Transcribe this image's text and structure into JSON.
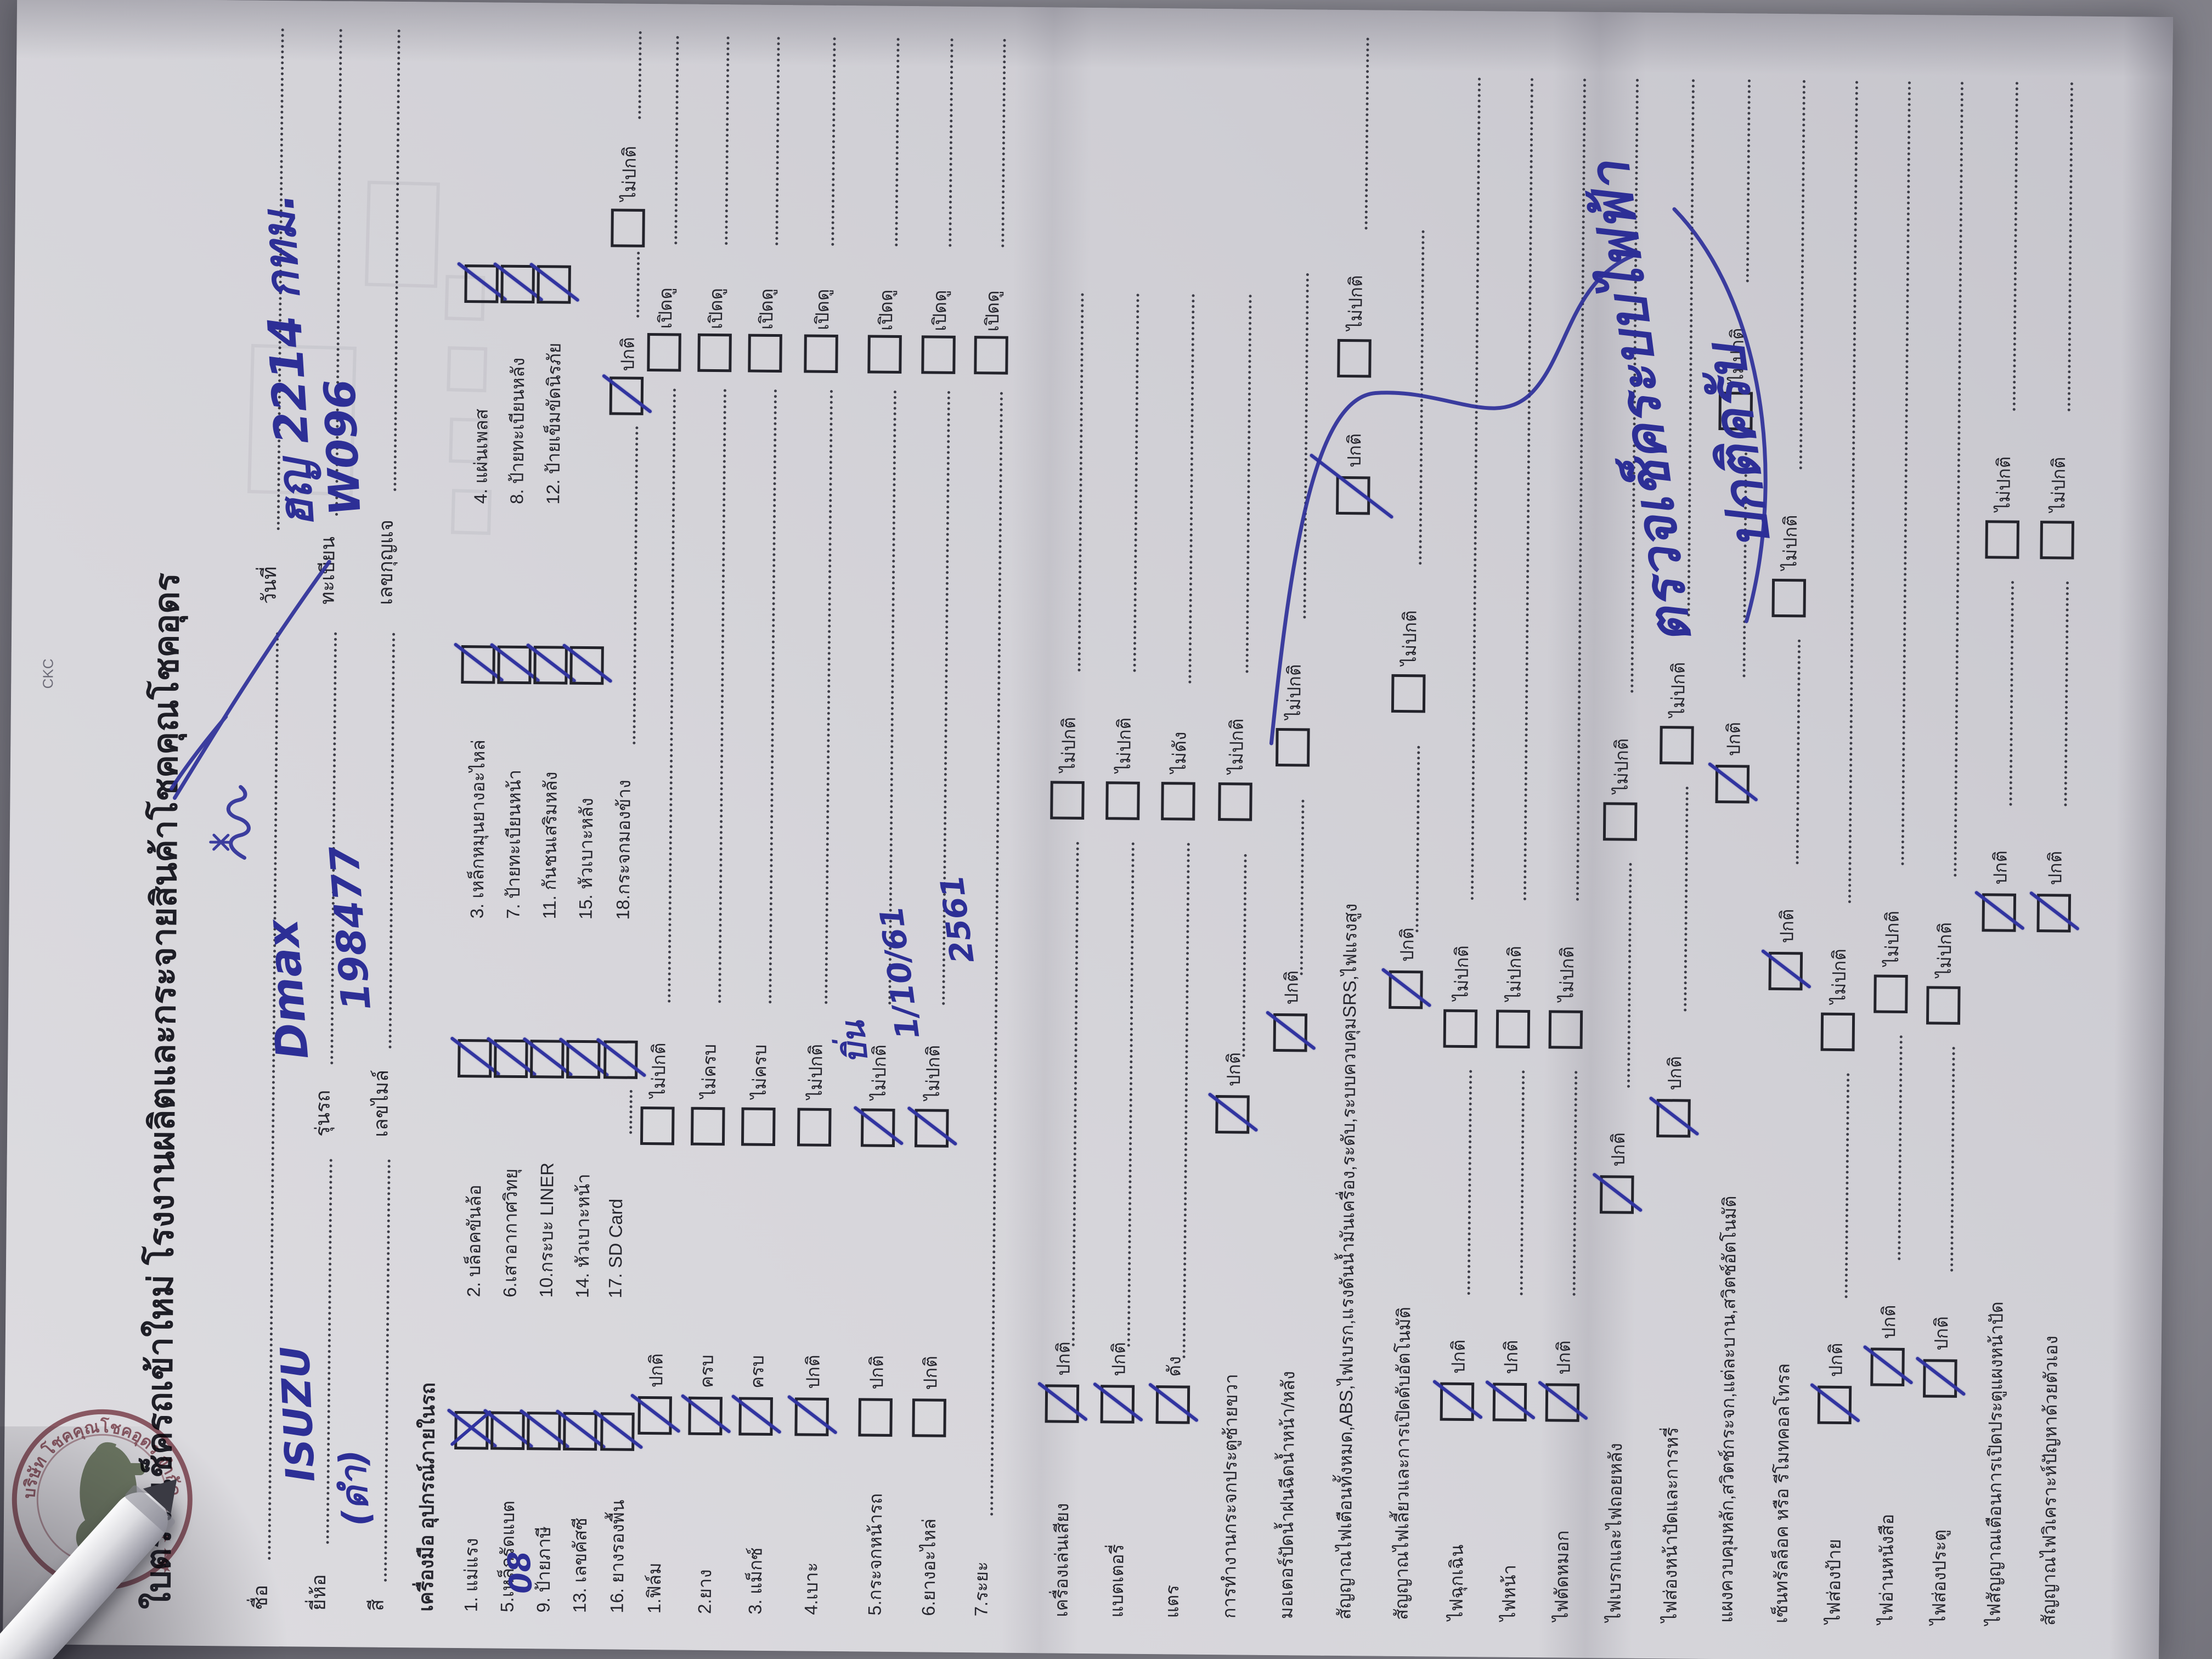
{
  "title": "ใบตรวจเช็ครถเข้าใหม่ โรงงานผลิตและกระจายสินค้าโชคคุณโชคอุดร",
  "header": {
    "fields": [
      {
        "label": "ชื่อ",
        "value": ""
      },
      {
        "label": "วันที่",
        "value": ""
      },
      {
        "label": "ยี่ห้อ",
        "value": "ISUZU"
      },
      {
        "label": "รุ่นรถ",
        "value": "Dmax"
      },
      {
        "label": "ทะเบียน",
        "value": "ฮญ 2214 กทม."
      },
      {
        "label": "สี",
        "value": "(ดำ)"
      },
      {
        "label": "เลขไมล์",
        "value": "198477"
      },
      {
        "label": "เลขกุญแจ",
        "value": "W096"
      }
    ]
  },
  "stamp": {
    "ring_text": "บริษัท โชคคุณโชคอุดร จำกัด",
    "code": "CKC",
    "stars": "★ ★ ★"
  },
  "tools": {
    "title": "เครื่องมือ อุปกรณ์ภายในรถ",
    "items": [
      "1. แม่แรง",
      "2. บล็อคขันล้อ",
      "3. เหล็กหมุนยางอะไหล่",
      "4. แผ่นเพลส",
      "5.เหล็กรัดแบต",
      "6.เสาอากาศวิทยุ",
      "7. ป้ายทะเบียนหน้า",
      "8. ป้ายทะเบียนหลัง",
      "9. ป้ายภาษี",
      "10.กระบะ LINER",
      "11. กันชนเสริมหลัง",
      "12. ป้ายเข็มขัดนิรภัย",
      "13. เลขคัสซี",
      "14. หัวเบาะหน้า",
      "15. หัวเบาะหลัง",
      "16. ยางรองพื้น",
      "17. SD Card",
      "18.กระจกมองข้าง"
    ],
    "note_item9": "08",
    "tail_ok": "ปกติ",
    "tail_bad": "ไม่ปกติ"
  },
  "inspect": {
    "open_label": "เปิดดู",
    "rows": [
      {
        "label": "1.ฟิล์ม",
        "o1": "ปกติ",
        "o2": "ไม่ปกติ",
        "mark": 1
      },
      {
        "label": "2.ยาง",
        "o1": "ครบ",
        "o2": "ไม่ครบ",
        "mark": 1
      },
      {
        "label": "3. แม็กซ์",
        "o1": "ครบ",
        "o2": "ไม่ครบ",
        "mark": 1
      },
      {
        "label": "4.เบาะ",
        "o1": "ปกติ",
        "o2": "ไม่ปกติ",
        "mark": 1
      },
      {
        "label": "5.กระจกหน้ารถ",
        "o1": "ปกติ",
        "o2": "ไม่ปกติ",
        "mark": 2
      },
      {
        "label": "6.ยางอะไหล่",
        "o1": "ปกติ",
        "o2": "ไม่ปกติ",
        "mark": 2
      },
      {
        "label": "7.ระยะ",
        "simple": true
      }
    ],
    "notes": [
      "บิ่น",
      "1/10/61",
      "2561"
    ]
  },
  "functions": {
    "rows": [
      {
        "label": "เครื่องเล่นเสียง",
        "o1": "ปกติ",
        "o2": "ไม่ปกติ"
      },
      {
        "label": "แบตเตอรี่",
        "o1": "ปกติ",
        "o2": "ไม่ปกติ"
      },
      {
        "label": "แตร",
        "o1": "ดัง",
        "o2": "ไม่ดัง"
      },
      {
        "label": "การทำงานกระจกประตูซ้ายขวา",
        "o1": "ปกติ",
        "o2": "ไม่ปกติ"
      },
      {
        "label": "มอเตอร์ปัดน้ำฝนฉีดน้ำหน้า/หลัง",
        "o1": "ปกติ",
        "o2": "ไม่ปกติ"
      },
      {
        "label": "สัญญาณไฟเตือนทั้งหมด,ABS,ไฟเบรก,แรงดันน้ำมันเครื่อง,ระดับ,ระบบควบคุมSRS,ไฟแรงสูง",
        "o1": "ปกติ",
        "o2": "ไม่ปกติ"
      },
      {
        "label": "สัญญาณไฟเลี้ยวและการเปิดดับอัตโนมัติ",
        "o1": "ปกติ",
        "o2": "ไม่ปกติ"
      }
    ]
  },
  "lights": {
    "ok": "ปกติ",
    "bad": "ไม่ปกติ",
    "rows": [
      "ไฟฉุกเฉิน",
      "ไฟหน้า",
      "ไฟตัดหมอก",
      "ไฟเบรกและไฟถอยหลัง",
      "ไฟส่องหน้าปัดและการหรี่",
      "แผงควบคุมหลัก,สวิตช์กระจก,แต่ละบาน,สวิตช์อัตโนมัติ",
      "เซ็นทรัลล็อค หรือ รีโมทคอลโทรล",
      "ไฟส่องป้าย",
      "ไฟอ่านหนังสือ",
      "ไฟส่องประตู",
      "ไฟสัญญาณเตือนการเปิดประตูแผงหน้าปัด",
      "สัญญาณไฟวิเคราะห์ปัญหาด้วยตัวเอง"
    ]
  },
  "handwritten_note": {
    "line1": "ตรวจเช็คระบบไฟฟ้า",
    "line2": "ปกติครับ"
  }
}
